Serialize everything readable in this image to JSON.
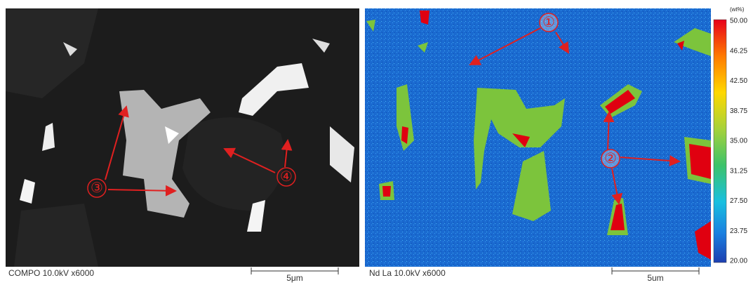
{
  "left_panel": {
    "caption": "COMPO 10.0kV x6000",
    "scale_bar": "5μm",
    "markers": [
      "③",
      "④"
    ]
  },
  "right_panel": {
    "caption": "Nd La 10.0kV x6000",
    "scale_bar": "5um",
    "markers": [
      "①",
      "②"
    ],
    "colorbar": {
      "unit": "(wt%)",
      "labels": [
        "50.00",
        "46.25",
        "42.50",
        "38.75",
        "35.00",
        "31.25",
        "27.50",
        "23.75",
        "20.00"
      ]
    }
  }
}
